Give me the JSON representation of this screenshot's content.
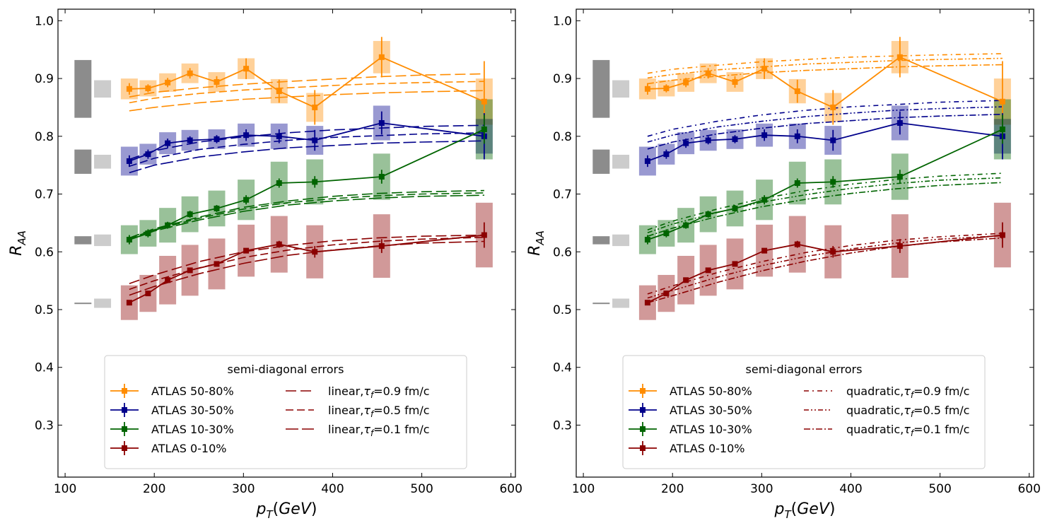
{
  "chart_data": [
    {
      "panel": "left",
      "type": "line",
      "xlabel": "p_T(GeV)",
      "ylabel": "R_AA",
      "xlim": [
        92,
        605
      ],
      "ylim": [
        0.21,
        1.02
      ],
      "x_ticks": [
        100,
        200,
        300,
        400,
        500,
        600
      ],
      "y_ticks": [
        0.3,
        0.4,
        0.5,
        0.6,
        0.7,
        0.8,
        0.9,
        1.0
      ],
      "legend_title": "semi-diagonal errors",
      "legend_location": "lower-right",
      "series": [
        {
          "name": "ATLAS 50-80%",
          "color": "#ff8c00",
          "x": [
            172,
            193,
            215,
            240,
            270,
            303,
            340,
            380,
            455,
            570
          ],
          "y": [
            0.882,
            0.883,
            0.893,
            0.909,
            0.894,
            0.917,
            0.878,
            0.85,
            0.937,
            0.86
          ],
          "err": [
            0.01,
            0.007,
            0.008,
            0.009,
            0.01,
            0.018,
            0.02,
            0.03,
            0.035,
            0.07
          ],
          "sys": [
            0.018,
            0.014,
            0.016,
            0.017,
            0.017,
            0.018,
            0.021,
            0.025,
            0.028,
            0.04
          ]
        },
        {
          "name": "ATLAS 30-50%",
          "color": "#00008b",
          "x": [
            172,
            193,
            215,
            240,
            270,
            303,
            340,
            380,
            455,
            570
          ],
          "y": [
            0.757,
            0.769,
            0.788,
            0.793,
            0.795,
            0.802,
            0.8,
            0.793,
            0.823,
            0.8
          ],
          "err": [
            0.01,
            0.008,
            0.008,
            0.007,
            0.007,
            0.01,
            0.012,
            0.018,
            0.02,
            0.04
          ],
          "sys": [
            0.025,
            0.018,
            0.019,
            0.018,
            0.017,
            0.02,
            0.022,
            0.025,
            0.03,
            0.03
          ]
        },
        {
          "name": "ATLAS 10-30%",
          "color": "#006400",
          "x": [
            172,
            193,
            215,
            240,
            270,
            303,
            340,
            380,
            455,
            570
          ],
          "y": [
            0.621,
            0.632,
            0.646,
            0.665,
            0.675,
            0.69,
            0.719,
            0.721,
            0.73,
            0.812
          ],
          "err": [
            0.008,
            0.007,
            0.006,
            0.006,
            0.006,
            0.008,
            0.008,
            0.01,
            0.012,
            0.025
          ],
          "sys": [
            0.025,
            0.023,
            0.03,
            0.031,
            0.031,
            0.035,
            0.037,
            0.039,
            0.04,
            0.052
          ]
        },
        {
          "name": "ATLAS 0-10%",
          "color": "#8b0000",
          "x": [
            172,
            193,
            215,
            240,
            270,
            303,
            340,
            380,
            455,
            570
          ],
          "y": [
            0.512,
            0.528,
            0.551,
            0.568,
            0.579,
            0.602,
            0.613,
            0.6,
            0.61,
            0.629
          ],
          "err": [
            0.004,
            0.004,
            0.004,
            0.004,
            0.004,
            0.004,
            0.006,
            0.01,
            0.012,
            0.022
          ],
          "sys": [
            0.03,
            0.032,
            0.042,
            0.044,
            0.044,
            0.045,
            0.049,
            0.046,
            0.055,
            0.056
          ]
        }
      ],
      "models": [
        {
          "name": "linear,τf=0.9 fm/c",
          "label_main": "linear,",
          "label_tau": "τ",
          "label_sub": "f",
          "label_rest": "=0.9 fm/c",
          "dash": "15 6"
        },
        {
          "name": "linear,τf=0.5 fm/c",
          "label_main": "linear,",
          "label_tau": "τ",
          "label_sub": "f",
          "label_rest": "=0.5 fm/c",
          "dash": "11 5"
        },
        {
          "name": "linear,τf=0.1 fm/c",
          "label_main": "linear,",
          "label_tau": "τ",
          "label_sub": "f",
          "label_rest": "=0.1 fm/c",
          "dash": "18 5"
        }
      ],
      "model_curves": [
        {
          "color": "#ff8c00",
          "x": [
            172,
            200,
            250,
            300,
            350,
            400,
            450,
            500,
            570
          ],
          "values": [
            [
              0.868,
              0.876,
              0.884,
              0.89,
              0.895,
              0.899,
              0.903,
              0.906,
              0.908
            ],
            [
              0.858,
              0.866,
              0.874,
              0.88,
              0.884,
              0.888,
              0.891,
              0.893,
              0.895
            ],
            [
              0.844,
              0.85,
              0.858,
              0.864,
              0.868,
              0.872,
              0.875,
              0.877,
              0.879
            ]
          ]
        },
        {
          "color": "#00008b",
          "x": [
            172,
            200,
            250,
            300,
            350,
            400,
            450,
            500,
            570
          ],
          "values": [
            [
              0.76,
              0.775,
              0.79,
              0.799,
              0.806,
              0.811,
              0.814,
              0.817,
              0.819
            ],
            [
              0.748,
              0.762,
              0.777,
              0.786,
              0.793,
              0.798,
              0.801,
              0.804,
              0.806
            ],
            [
              0.737,
              0.75,
              0.764,
              0.773,
              0.78,
              0.784,
              0.788,
              0.79,
              0.792
            ]
          ]
        },
        {
          "color": "#006400",
          "x": [
            172,
            200,
            250,
            300,
            350,
            400,
            450,
            500,
            570
          ],
          "values": [
            [
              0.624,
              0.64,
              0.66,
              0.677,
              0.688,
              0.696,
              0.701,
              0.704,
              0.706
            ],
            [
              0.623,
              0.638,
              0.658,
              0.674,
              0.685,
              0.692,
              0.697,
              0.7,
              0.702
            ],
            [
              0.621,
              0.636,
              0.655,
              0.67,
              0.681,
              0.688,
              0.693,
              0.696,
              0.698
            ]
          ]
        },
        {
          "color": "#8b0000",
          "x": [
            172,
            200,
            250,
            300,
            350,
            400,
            450,
            500,
            570
          ],
          "values": [
            [
              0.545,
              0.56,
              0.583,
              0.6,
              0.611,
              0.619,
              0.624,
              0.627,
              0.629
            ],
            [
              0.535,
              0.55,
              0.572,
              0.59,
              0.603,
              0.612,
              0.618,
              0.622,
              0.625
            ],
            [
              0.525,
              0.54,
              0.562,
              0.58,
              0.594,
              0.603,
              0.61,
              0.615,
              0.618
            ]
          ]
        }
      ],
      "normalization_boxes": [
        {
          "color": "#8c8c8c",
          "x_center": 120,
          "y": 0.882,
          "half": 0.05
        },
        {
          "color": "#cccccc",
          "x_center": 142,
          "y": 0.882,
          "half": 0.015
        },
        {
          "color": "#8c8c8c",
          "x_center": 120,
          "y": 0.756,
          "half": 0.021
        },
        {
          "color": "#cccccc",
          "x_center": 142,
          "y": 0.756,
          "half": 0.012
        },
        {
          "color": "#8c8c8c",
          "x_center": 120,
          "y": 0.62,
          "half": 0.007
        },
        {
          "color": "#cccccc",
          "x_center": 142,
          "y": 0.62,
          "half": 0.01
        },
        {
          "color": "#8c8c8c",
          "x_center": 120,
          "y": 0.511,
          "half": 0.001
        },
        {
          "color": "#cccccc",
          "x_center": 142,
          "y": 0.511,
          "half": 0.008
        }
      ]
    },
    {
      "panel": "right",
      "type": "line",
      "xlabel": "p_T(GeV)",
      "ylabel": "R_AA",
      "xlim": [
        92,
        605
      ],
      "ylim": [
        0.21,
        1.02
      ],
      "x_ticks": [
        100,
        200,
        300,
        400,
        500,
        600
      ],
      "y_ticks": [
        0.3,
        0.4,
        0.5,
        0.6,
        0.7,
        0.8,
        0.9,
        1.0
      ],
      "legend_title": "semi-diagonal errors",
      "legend_location": "lower-right",
      "series": [
        {
          "name": "ATLAS 50-80%",
          "color": "#ff8c00",
          "x": [
            172,
            193,
            215,
            240,
            270,
            303,
            340,
            380,
            455,
            570
          ],
          "y": [
            0.882,
            0.883,
            0.893,
            0.909,
            0.894,
            0.917,
            0.878,
            0.85,
            0.937,
            0.86
          ],
          "err": [
            0.01,
            0.007,
            0.008,
            0.009,
            0.01,
            0.018,
            0.02,
            0.03,
            0.035,
            0.07
          ],
          "sys": [
            0.018,
            0.014,
            0.016,
            0.017,
            0.017,
            0.018,
            0.021,
            0.025,
            0.028,
            0.04
          ]
        },
        {
          "name": "ATLAS 30-50%",
          "color": "#00008b",
          "x": [
            172,
            193,
            215,
            240,
            270,
            303,
            340,
            380,
            455,
            570
          ],
          "y": [
            0.757,
            0.769,
            0.788,
            0.793,
            0.795,
            0.802,
            0.8,
            0.793,
            0.823,
            0.8
          ],
          "err": [
            0.01,
            0.008,
            0.008,
            0.007,
            0.007,
            0.01,
            0.012,
            0.018,
            0.02,
            0.04
          ],
          "sys": [
            0.025,
            0.018,
            0.019,
            0.018,
            0.017,
            0.02,
            0.022,
            0.025,
            0.03,
            0.03
          ]
        },
        {
          "name": "ATLAS 10-30%",
          "color": "#006400",
          "x": [
            172,
            193,
            215,
            240,
            270,
            303,
            340,
            380,
            455,
            570
          ],
          "y": [
            0.621,
            0.632,
            0.646,
            0.665,
            0.675,
            0.69,
            0.719,
            0.721,
            0.73,
            0.812
          ],
          "err": [
            0.008,
            0.007,
            0.006,
            0.006,
            0.006,
            0.008,
            0.008,
            0.01,
            0.012,
            0.025
          ],
          "sys": [
            0.025,
            0.023,
            0.03,
            0.031,
            0.031,
            0.035,
            0.037,
            0.039,
            0.04,
            0.052
          ]
        },
        {
          "name": "ATLAS 0-10%",
          "color": "#8b0000",
          "x": [
            172,
            193,
            215,
            240,
            270,
            303,
            340,
            380,
            455,
            570
          ],
          "y": [
            0.512,
            0.528,
            0.551,
            0.568,
            0.579,
            0.602,
            0.613,
            0.6,
            0.61,
            0.629
          ],
          "err": [
            0.004,
            0.004,
            0.004,
            0.004,
            0.004,
            0.004,
            0.006,
            0.01,
            0.012,
            0.022
          ],
          "sys": [
            0.03,
            0.032,
            0.042,
            0.044,
            0.044,
            0.045,
            0.049,
            0.046,
            0.055,
            0.056
          ]
        }
      ],
      "models": [
        {
          "name": "quadratic,τf=0.9 fm/c",
          "label_main": "quadratic,",
          "label_tau": "τ",
          "label_sub": "f",
          "label_rest": "=0.9 fm/c",
          "dash": "7 5 2 5"
        },
        {
          "name": "quadratic,τf=0.5 fm/c",
          "label_main": "quadratic,",
          "label_tau": "τ",
          "label_sub": "f",
          "label_rest": "=0.5 fm/c",
          "dash": "7 3 2 3 2 3"
        },
        {
          "name": "quadratic,τf=0.1 fm/c",
          "label_main": "quadratic,",
          "label_tau": "τ",
          "label_sub": "f",
          "label_rest": "=0.1 fm/c",
          "dash": "9 3 2 3"
        }
      ],
      "model_curves": [
        {
          "color": "#ff8c00",
          "x": [
            172,
            200,
            250,
            300,
            350,
            400,
            450,
            500,
            570
          ],
          "values": [
            [
              0.909,
              0.916,
              0.923,
              0.929,
              0.933,
              0.937,
              0.939,
              0.941,
              0.943
            ],
            [
              0.901,
              0.907,
              0.915,
              0.92,
              0.925,
              0.928,
              0.931,
              0.933,
              0.935
            ],
            [
              0.891,
              0.897,
              0.904,
              0.91,
              0.914,
              0.917,
              0.92,
              0.922,
              0.924
            ]
          ]
        },
        {
          "color": "#00008b",
          "x": [
            172,
            200,
            250,
            300,
            350,
            400,
            450,
            500,
            570
          ],
          "values": [
            [
              0.8,
              0.812,
              0.826,
              0.837,
              0.845,
              0.851,
              0.855,
              0.859,
              0.862
            ],
            [
              0.79,
              0.802,
              0.816,
              0.826,
              0.834,
              0.84,
              0.845,
              0.848,
              0.851
            ],
            [
              0.778,
              0.79,
              0.804,
              0.814,
              0.822,
              0.827,
              0.832,
              0.835,
              0.838
            ]
          ]
        },
        {
          "color": "#006400",
          "x": [
            172,
            200,
            250,
            300,
            350,
            400,
            450,
            500,
            570
          ],
          "values": [
            [
              0.638,
              0.653,
              0.674,
              0.692,
              0.706,
              0.717,
              0.725,
              0.731,
              0.736
            ],
            [
              0.633,
              0.648,
              0.668,
              0.686,
              0.699,
              0.71,
              0.718,
              0.724,
              0.728
            ],
            [
              0.627,
              0.641,
              0.661,
              0.678,
              0.691,
              0.701,
              0.709,
              0.715,
              0.72
            ]
          ]
        },
        {
          "color": "#8b0000",
          "x": [
            172,
            200,
            250,
            300,
            350,
            400,
            450,
            500,
            570
          ],
          "values": [
            [
              0.527,
              0.541,
              0.564,
              0.583,
              0.599,
              0.611,
              0.62,
              0.626,
              0.632
            ],
            [
              0.52,
              0.533,
              0.556,
              0.576,
              0.592,
              0.605,
              0.615,
              0.622,
              0.628
            ],
            [
              0.512,
              0.524,
              0.547,
              0.567,
              0.584,
              0.598,
              0.609,
              0.617,
              0.624
            ]
          ]
        }
      ],
      "normalization_boxes": [
        {
          "color": "#8c8c8c",
          "x_center": 120,
          "y": 0.882,
          "half": 0.05
        },
        {
          "color": "#cccccc",
          "x_center": 142,
          "y": 0.882,
          "half": 0.015
        },
        {
          "color": "#8c8c8c",
          "x_center": 120,
          "y": 0.756,
          "half": 0.021
        },
        {
          "color": "#cccccc",
          "x_center": 142,
          "y": 0.756,
          "half": 0.012
        },
        {
          "color": "#8c8c8c",
          "x_center": 120,
          "y": 0.62,
          "half": 0.007
        },
        {
          "color": "#cccccc",
          "x_center": 142,
          "y": 0.62,
          "half": 0.01
        },
        {
          "color": "#8c8c8c",
          "x_center": 120,
          "y": 0.511,
          "half": 0.001
        },
        {
          "color": "#cccccc",
          "x_center": 142,
          "y": 0.511,
          "half": 0.008
        }
      ]
    }
  ]
}
